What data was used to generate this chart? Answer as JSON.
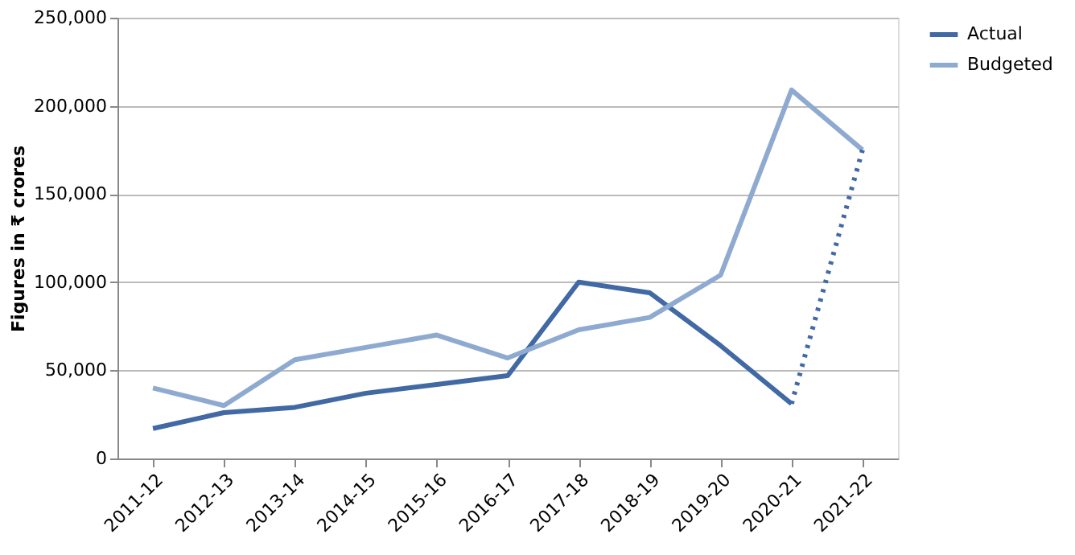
{
  "chart_data": {
    "type": "line",
    "ylabel": "Figures in ₹ crores",
    "categories": [
      "2011-12",
      "2012-13",
      "2013-14",
      "2014-15",
      "2015-16",
      "2016-17",
      "2017-18",
      "2018-19",
      "2019-20",
      "2020-21",
      "2021-22"
    ],
    "series": [
      {
        "name": "Actual",
        "color": "#4169a4",
        "values": [
          17000,
          26000,
          29000,
          37000,
          42000,
          47000,
          100000,
          94000,
          64000,
          31000,
          null
        ]
      },
      {
        "name": "Budgeted",
        "color": "#8faad0",
        "values": [
          40000,
          30000,
          56000,
          63000,
          70000,
          57000,
          73000,
          80000,
          104000,
          209000,
          175000
        ]
      },
      {
        "color": "#4169a4",
        "line_style": "dotted",
        "values": [
          null,
          null,
          null,
          null,
          null,
          null,
          null,
          null,
          null,
          31000,
          175000
        ]
      }
    ],
    "ylim": [
      0,
      250000
    ],
    "yticks": [
      0,
      {
        "value": 50000,
        "label": "50,000"
      },
      {
        "value": 100000,
        "label": "100,000"
      },
      {
        "value": 150000,
        "label": "150,000"
      },
      {
        "value": 200000,
        "label": "200,000"
      },
      {
        "value": 250000,
        "label": "250,000"
      }
    ],
    "grid": "y",
    "legend": "right",
    "marker": "none",
    "line_style": "solid"
  }
}
